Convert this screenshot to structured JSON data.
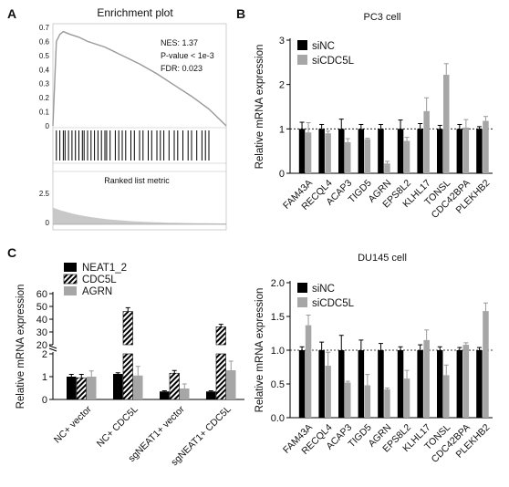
{
  "panels": {
    "a": {
      "letter": "A",
      "title": "Enrichment plot",
      "stats": [
        "NES: 1.37",
        "P-value < 1e-3",
        "FDR: 0.023"
      ],
      "yticks": [
        "0.7",
        "0.6",
        "0.5",
        "0.4",
        "0.3",
        "0.2",
        "0.1",
        "0"
      ],
      "metric_label": "Ranked list metric",
      "metric_ticks": [
        "2.5",
        "0"
      ]
    },
    "b": {
      "letter": "B"
    },
    "c": {
      "letter": "C"
    }
  },
  "chart_data": [
    {
      "type": "line",
      "id": "A-enrichment",
      "title": "Enrichment plot",
      "annotations": [
        "NES: 1.37",
        "P-value < 1e-3",
        "FDR: 0.023"
      ],
      "ylim": [
        0,
        0.7
      ],
      "x": [
        0,
        0.02,
        0.04,
        0.06,
        0.08,
        0.1,
        0.15,
        0.2,
        0.3,
        0.4,
        0.5,
        0.6,
        0.7,
        0.8,
        0.9,
        0.95,
        1.0
      ],
      "y": [
        0,
        0.6,
        0.65,
        0.67,
        0.66,
        0.65,
        0.63,
        0.6,
        0.56,
        0.5,
        0.44,
        0.37,
        0.29,
        0.21,
        0.12,
        0.06,
        0
      ],
      "hits": [
        0.02,
        0.04,
        0.06,
        0.07,
        0.09,
        0.11,
        0.13,
        0.15,
        0.17,
        0.18,
        0.2,
        0.22,
        0.24,
        0.26,
        0.28,
        0.3,
        0.31,
        0.33,
        0.36,
        0.38,
        0.4,
        0.42,
        0.45,
        0.47,
        0.5,
        0.52,
        0.55,
        0.57,
        0.6,
        0.62,
        0.64,
        0.67,
        0.7,
        0.72,
        0.75,
        0.78,
        0.8,
        0.83,
        0.86,
        0.88,
        0.9
      ],
      "metric_label": "Ranked list metric",
      "metric_ylim": [
        0,
        2.5
      ]
    },
    {
      "type": "bar",
      "id": "B-pc3",
      "title": "PC3 cell",
      "ylabel": "Relative mRNA expression",
      "ylim": [
        0,
        3
      ],
      "yticks": [
        0,
        1,
        2,
        3
      ],
      "reference_line": 1,
      "categories": [
        "FAM43A",
        "RECQL4",
        "ACAP3",
        "TIGD5",
        "AGRN",
        "EPS8L2",
        "KLHL17",
        "TONSL",
        "CDC42BPA",
        "PLEKHB2"
      ],
      "series": [
        {
          "name": "siNC",
          "color": "#000000",
          "values": [
            1,
            1,
            1,
            1,
            1,
            1,
            1,
            1,
            1,
            1
          ],
          "errors": [
            0.15,
            0.1,
            0.22,
            0.1,
            0.1,
            0.2,
            0.12,
            0.08,
            0.1,
            0.05
          ]
        },
        {
          "name": "siCDC5L",
          "color": "#a6a6a6",
          "values": [
            0.92,
            0.9,
            0.7,
            0.77,
            0.22,
            0.73,
            1.4,
            2.22,
            1.03,
            1.18
          ],
          "errors": [
            0.22,
            0.05,
            0.08,
            0.02,
            0.05,
            0.08,
            0.3,
            0.25,
            0.18,
            0.1
          ]
        }
      ]
    },
    {
      "type": "bar",
      "id": "C-neat1",
      "ylabel": "Relative mRNA expression",
      "y_break": [
        2,
        20
      ],
      "yticks": [
        0,
        1,
        2,
        20,
        30,
        40,
        50,
        60
      ],
      "categories": [
        "NC+ vector",
        "NC+ CDC5L",
        "sgNEAT1+ vector",
        "sgNEAT1+ CDC5L"
      ],
      "series": [
        {
          "name": "NEAT1_2",
          "color": "#000000",
          "pattern": "solid",
          "values": [
            1.0,
            1.12,
            0.35,
            0.35
          ],
          "errors": [
            0.1,
            0.05,
            0.03,
            0.03
          ]
        },
        {
          "name": "CDC5L",
          "color": "#000000",
          "pattern": "hatched",
          "values": [
            0.95,
            46,
            1.15,
            34
          ],
          "errors": [
            0.15,
            3,
            0.12,
            2
          ]
        },
        {
          "name": "AGRN",
          "color": "#a6a6a6",
          "pattern": "solid",
          "values": [
            1.0,
            1.05,
            0.48,
            1.28
          ],
          "errors": [
            0.25,
            0.4,
            0.2,
            0.4
          ]
        }
      ]
    },
    {
      "type": "bar",
      "id": "C-du145",
      "title": "DU145 cell",
      "ylabel": "Relative mRNA expression",
      "ylim": [
        0,
        2
      ],
      "yticks": [
        "0.0",
        "0.5",
        "1.0",
        "1.5",
        "2.0"
      ],
      "reference_line": 1,
      "categories": [
        "FAM43A",
        "RECQL4",
        "ACAP3",
        "TIGD5",
        "AGRN",
        "EPS8L2",
        "KLHL17",
        "TONSL",
        "CDC42BPA",
        "PLEKHB2"
      ],
      "series": [
        {
          "name": "siNC",
          "color": "#000000",
          "values": [
            1,
            1,
            1,
            1,
            1,
            1,
            1,
            1,
            1,
            1
          ],
          "errors": [
            0.05,
            0.12,
            0.22,
            0.15,
            0.1,
            0.05,
            0.08,
            0.05,
            0.04,
            0.04
          ]
        },
        {
          "name": "siCDC5L",
          "color": "#a6a6a6",
          "values": [
            1.37,
            0.77,
            0.52,
            0.48,
            0.42,
            0.58,
            1.15,
            0.63,
            1.08,
            1.58
          ],
          "errors": [
            0.15,
            0.2,
            0.02,
            0.16,
            0.02,
            0.12,
            0.15,
            0.15,
            0.03,
            0.12
          ]
        }
      ]
    }
  ]
}
